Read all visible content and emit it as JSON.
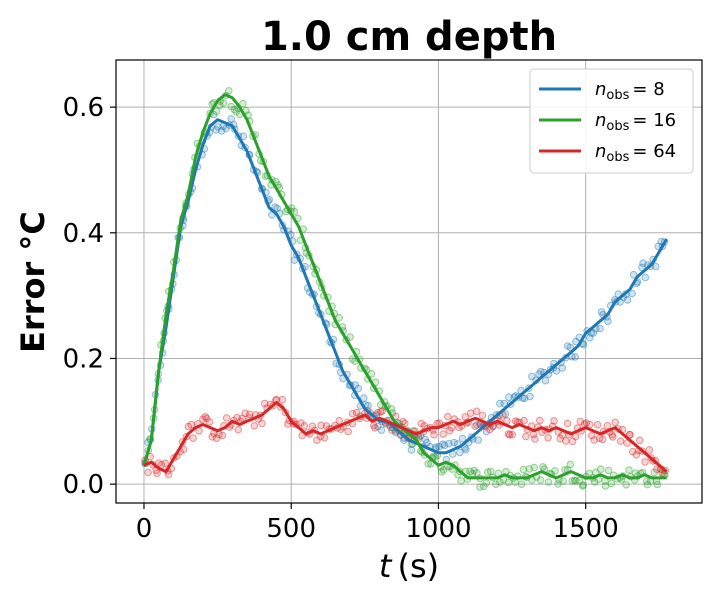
{
  "chart_data": {
    "type": "line",
    "title": "1.0 cm depth",
    "xlabel_var": "t",
    "xlabel_unit": "(s)",
    "ylabel": "Error °C",
    "xlim": [
      -95,
      1895
    ],
    "ylim": [
      -0.03,
      0.675
    ],
    "xticks": [
      0,
      500,
      1000,
      1500
    ],
    "xtick_labels": [
      "0",
      "500",
      "1000",
      "1500"
    ],
    "yticks": [
      0.0,
      0.2,
      0.4,
      0.6
    ],
    "ytick_labels": [
      "0.0",
      "0.2",
      "0.4",
      "0.6"
    ],
    "grid": true,
    "legend_position": "top-right",
    "series": [
      {
        "name_base": "n",
        "name_sub": "obs",
        "name_value": "= 8",
        "color": "#1f77b4",
        "x": [
          0,
          25,
          50,
          75,
          100,
          125,
          150,
          175,
          200,
          225,
          250,
          275,
          300,
          325,
          350,
          375,
          400,
          425,
          450,
          475,
          500,
          525,
          550,
          575,
          600,
          625,
          650,
          675,
          700,
          725,
          750,
          775,
          800,
          825,
          850,
          875,
          900,
          925,
          950,
          975,
          1000,
          1025,
          1050,
          1075,
          1100,
          1125,
          1150,
          1175,
          1200,
          1225,
          1250,
          1275,
          1300,
          1325,
          1350,
          1375,
          1400,
          1425,
          1450,
          1475,
          1500,
          1525,
          1550,
          1575,
          1600,
          1625,
          1650,
          1675,
          1700,
          1725,
          1750,
          1775
        ],
        "y": [
          0.03,
          0.07,
          0.18,
          0.25,
          0.33,
          0.41,
          0.45,
          0.5,
          0.54,
          0.57,
          0.58,
          0.575,
          0.57,
          0.55,
          0.53,
          0.5,
          0.47,
          0.44,
          0.43,
          0.41,
          0.38,
          0.36,
          0.33,
          0.3,
          0.27,
          0.24,
          0.21,
          0.18,
          0.16,
          0.14,
          0.12,
          0.11,
          0.1,
          0.1,
          0.09,
          0.08,
          0.07,
          0.065,
          0.06,
          0.055,
          0.05,
          0.05,
          0.055,
          0.06,
          0.07,
          0.08,
          0.09,
          0.1,
          0.11,
          0.12,
          0.13,
          0.14,
          0.15,
          0.16,
          0.17,
          0.18,
          0.19,
          0.2,
          0.21,
          0.22,
          0.24,
          0.25,
          0.26,
          0.27,
          0.29,
          0.3,
          0.31,
          0.33,
          0.34,
          0.35,
          0.37,
          0.39
        ]
      },
      {
        "name_base": "n",
        "name_sub": "obs",
        "name_value": "= 16",
        "color": "#2ca02c",
        "x": [
          0,
          25,
          50,
          75,
          100,
          125,
          150,
          175,
          200,
          225,
          250,
          275,
          300,
          325,
          350,
          375,
          400,
          425,
          450,
          475,
          500,
          525,
          550,
          575,
          600,
          625,
          650,
          675,
          700,
          725,
          750,
          775,
          800,
          825,
          850,
          875,
          900,
          925,
          950,
          975,
          1000,
          1025,
          1050,
          1075,
          1100,
          1125,
          1150,
          1175,
          1200,
          1225,
          1250,
          1275,
          1300,
          1325,
          1350,
          1375,
          1400,
          1425,
          1450,
          1475,
          1500,
          1525,
          1550,
          1575,
          1600,
          1625,
          1650,
          1675,
          1700,
          1725,
          1750,
          1775
        ],
        "y": [
          0.03,
          0.07,
          0.18,
          0.27,
          0.34,
          0.42,
          0.46,
          0.52,
          0.56,
          0.59,
          0.61,
          0.62,
          0.615,
          0.6,
          0.58,
          0.55,
          0.52,
          0.49,
          0.47,
          0.45,
          0.43,
          0.41,
          0.38,
          0.35,
          0.32,
          0.29,
          0.26,
          0.24,
          0.22,
          0.2,
          0.18,
          0.16,
          0.14,
          0.12,
          0.1,
          0.09,
          0.08,
          0.07,
          0.05,
          0.04,
          0.03,
          0.035,
          0.03,
          0.02,
          0.01,
          0.01,
          0.01,
          0.01,
          0.01,
          0.015,
          0.01,
          0.01,
          0.01,
          0.015,
          0.02,
          0.015,
          0.01,
          0.015,
          0.02,
          0.015,
          0.01,
          0.01,
          0.015,
          0.01,
          0.01,
          0.015,
          0.01,
          0.01,
          0.015,
          0.01,
          0.01,
          0.01
        ]
      },
      {
        "name_base": "n",
        "name_sub": "obs",
        "name_value": "= 64",
        "color": "#d62728",
        "x": [
          0,
          25,
          50,
          75,
          100,
          125,
          150,
          175,
          200,
          225,
          250,
          275,
          300,
          325,
          350,
          375,
          400,
          425,
          450,
          475,
          500,
          525,
          550,
          575,
          600,
          625,
          650,
          675,
          700,
          725,
          750,
          775,
          800,
          825,
          850,
          875,
          900,
          925,
          950,
          975,
          1000,
          1025,
          1050,
          1075,
          1100,
          1125,
          1150,
          1175,
          1200,
          1225,
          1250,
          1275,
          1300,
          1325,
          1350,
          1375,
          1400,
          1425,
          1450,
          1475,
          1500,
          1525,
          1550,
          1575,
          1600,
          1625,
          1650,
          1675,
          1700,
          1725,
          1750,
          1775
        ],
        "y": [
          0.03,
          0.035,
          0.025,
          0.02,
          0.04,
          0.06,
          0.08,
          0.09,
          0.095,
          0.09,
          0.085,
          0.09,
          0.1,
          0.095,
          0.1,
          0.105,
          0.11,
          0.12,
          0.13,
          0.12,
          0.1,
          0.09,
          0.08,
          0.085,
          0.08,
          0.085,
          0.09,
          0.095,
          0.1,
          0.105,
          0.11,
          0.1,
          0.105,
          0.1,
          0.095,
          0.09,
          0.085,
          0.08,
          0.085,
          0.09,
          0.09,
          0.095,
          0.1,
          0.095,
          0.1,
          0.105,
          0.1,
          0.095,
          0.1,
          0.095,
          0.09,
          0.095,
          0.09,
          0.085,
          0.09,
          0.085,
          0.09,
          0.085,
          0.08,
          0.085,
          0.09,
          0.085,
          0.08,
          0.085,
          0.09,
          0.08,
          0.07,
          0.06,
          0.05,
          0.04,
          0.03,
          0.02
        ]
      }
    ]
  }
}
